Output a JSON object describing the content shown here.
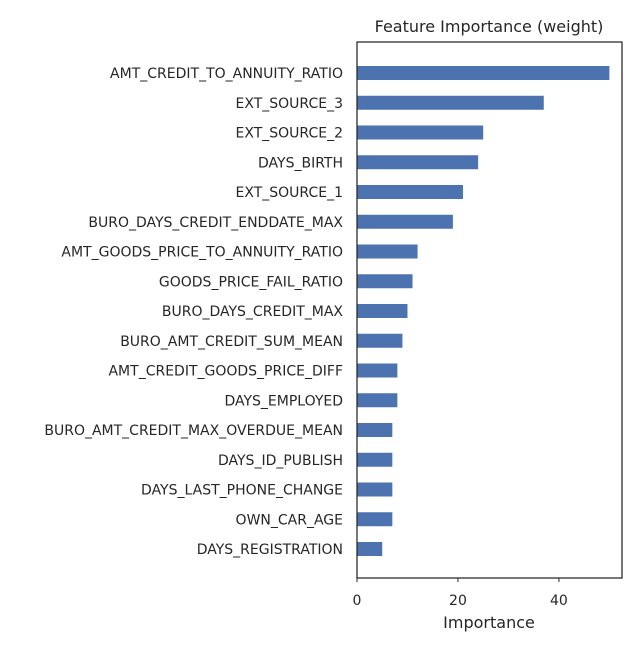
{
  "chart_data": {
    "type": "bar",
    "orientation": "horizontal",
    "title": "Feature Importance (weight)",
    "xlabel": "Importance",
    "ylabel": "",
    "xlim": [
      0,
      52.5
    ],
    "xticks": [
      0,
      20,
      40
    ],
    "grid": false,
    "bar_color": "#4c72b0",
    "categories": [
      "AMT_CREDIT_TO_ANNUITY_RATIO",
      "EXT_SOURCE_3",
      "EXT_SOURCE_2",
      "DAYS_BIRTH",
      "EXT_SOURCE_1",
      "BURO_DAYS_CREDIT_ENDDATE_MAX",
      "AMT_GOODS_PRICE_TO_ANNUITY_RATIO",
      "GOODS_PRICE_FAIL_RATIO",
      "BURO_DAYS_CREDIT_MAX",
      "BURO_AMT_CREDIT_SUM_MEAN",
      "AMT_CREDIT_GOODS_PRICE_DIFF",
      "DAYS_EMPLOYED",
      "BURO_AMT_CREDIT_MAX_OVERDUE_MEAN",
      "DAYS_ID_PUBLISH",
      "DAYS_LAST_PHONE_CHANGE",
      "OWN_CAR_AGE",
      "DAYS_REGISTRATION"
    ],
    "values": [
      50,
      37,
      25,
      24,
      21,
      19,
      12,
      11,
      10,
      9,
      8,
      8,
      7,
      7,
      7,
      7,
      5
    ]
  }
}
